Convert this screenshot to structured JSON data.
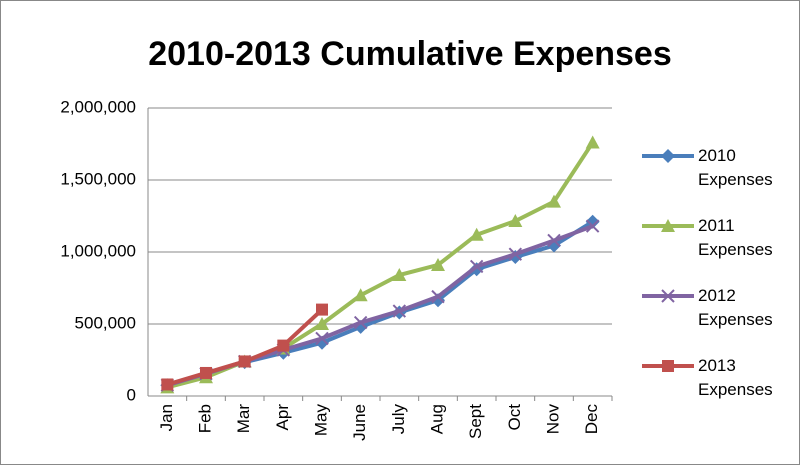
{
  "chart_data": {
    "type": "line",
    "title": "2010-2013 Cumulative Expenses",
    "categories": [
      "Jan",
      "Feb",
      "Mar",
      "Apr",
      "May",
      "June",
      "July",
      "Aug",
      "Sept",
      "Oct",
      "Nov",
      "Dec"
    ],
    "series": [
      {
        "name": "2010 Expenses",
        "color": "#4a7ebb",
        "marker": "diamond",
        "values": [
          75000,
          150000,
          235000,
          300000,
          370000,
          480000,
          580000,
          665000,
          880000,
          965000,
          1045000,
          1210000
        ]
      },
      {
        "name": "2011 Expenses",
        "color": "#9bbb59",
        "marker": "triangle",
        "values": [
          60000,
          130000,
          240000,
          330000,
          500000,
          700000,
          840000,
          910000,
          1120000,
          1215000,
          1350000,
          1760000
        ]
      },
      {
        "name": "2012 Expenses",
        "color": "#8064a2",
        "marker": "x",
        "values": [
          75000,
          155000,
          240000,
          320000,
          400000,
          510000,
          590000,
          690000,
          900000,
          985000,
          1080000,
          1180000
        ]
      },
      {
        "name": "2013 Expenses",
        "color": "#c0504d",
        "marker": "square",
        "values": [
          80000,
          160000,
          240000,
          350000,
          600000,
          null,
          null,
          null,
          null,
          null,
          null,
          null
        ]
      }
    ],
    "ylim": [
      0,
      2000000
    ],
    "yticks": [
      0,
      {
        "value": 500000,
        "label": "500,000"
      },
      {
        "value": 1000000,
        "label": "1,000,000"
      },
      {
        "value": 1500000,
        "label": "1,500,000"
      },
      {
        "value": 2000000,
        "label": "2,000,000"
      }
    ],
    "grid": true,
    "legend": "right"
  }
}
